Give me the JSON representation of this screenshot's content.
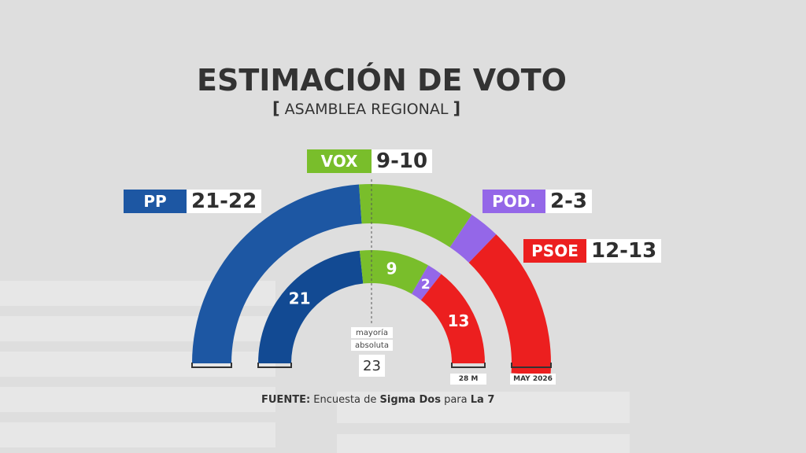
{
  "title": "ESTIMACIÓN DE VOTO",
  "subtitle": "ASAMBLEA REGIONAL",
  "colors": {
    "pp": "#1d57a3",
    "pp_inner": "#124a93",
    "vox": "#79be2b",
    "pod": "#9467e8",
    "psoe": "#ec1f1f"
  },
  "chart_data": {
    "type": "parliament-hemicycle",
    "total_seats": 45,
    "majority_label_1": "mayoría",
    "majority_label_2": "absoluta",
    "majority_value": "23",
    "outer_ring": {
      "label": "MAY 2026",
      "parties": [
        {
          "key": "pp",
          "name": "PP",
          "range": "21-22",
          "seats": 21.5
        },
        {
          "key": "vox",
          "name": "VOX",
          "range": "9-10",
          "seats": 9.5
        },
        {
          "key": "pod",
          "name": "POD.",
          "range": "2-3",
          "seats": 2.5
        },
        {
          "key": "psoe",
          "name": "PSOE",
          "range": "12-13",
          "seats": 12.5
        }
      ]
    },
    "inner_ring": {
      "label": "28 M",
      "parties": [
        {
          "key": "pp",
          "name": "PP",
          "seats": 21,
          "label": "21"
        },
        {
          "key": "vox",
          "name": "VOX",
          "seats": 9,
          "label": "9"
        },
        {
          "key": "pod",
          "name": "POD.",
          "seats": 2,
          "label": "2"
        },
        {
          "key": "psoe",
          "name": "PSOE",
          "seats": 13,
          "label": "13"
        }
      ]
    }
  },
  "source": {
    "prefix": "FUENTE:",
    "text1": "Encuesta de",
    "pollster": "Sigma Dos",
    "text2": "para",
    "client": "La 7"
  }
}
